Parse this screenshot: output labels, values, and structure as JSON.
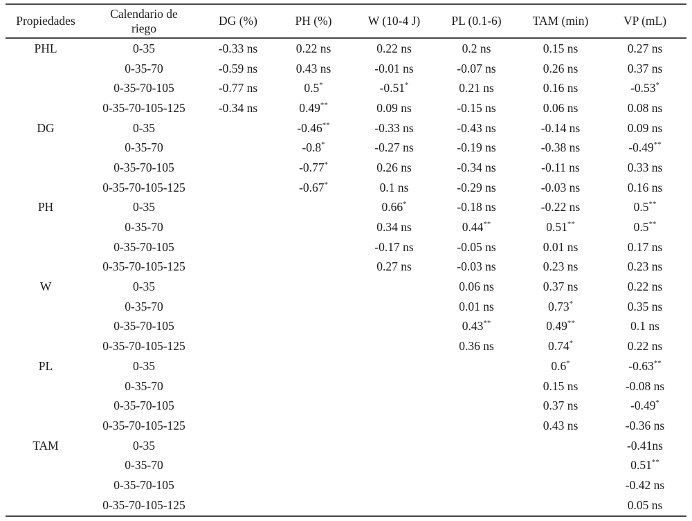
{
  "table": {
    "headers": [
      "Propiedades",
      "Calendario de riego",
      "DG (%)",
      "PH (%)",
      "W (10-4 J)",
      "PL (0.1-6)",
      "TAM (min)",
      "VP (mL)"
    ],
    "significance_legend": {
      "ns": "ns",
      "significant": "*",
      "highly_significant": "**"
    },
    "rows": [
      {
        "property": "PHL",
        "schedule": "0-35",
        "values": [
          "-0.33 ns",
          "0.22 ns",
          "0.22 ns",
          "0.2 ns",
          "0.15 ns",
          "0.27 ns"
        ]
      },
      {
        "property": "",
        "schedule": "0-35-70",
        "values": [
          "-0.59 ns",
          "0.43 ns",
          "-0.01 ns",
          "-0.07 ns",
          "0.26 ns",
          "0.37 ns"
        ]
      },
      {
        "property": "",
        "schedule": "0-35-70-105",
        "values": [
          "-0.77 ns",
          "0.5*",
          "-0.51*",
          "0.21 ns",
          "0.16 ns",
          "-0.53*"
        ]
      },
      {
        "property": "",
        "schedule": "0-35-70-105-125",
        "values": [
          "-0.34 ns",
          "0.49**",
          "0.09 ns",
          "-0.15 ns",
          "0.06 ns",
          "0.08 ns"
        ]
      },
      {
        "property": "DG",
        "schedule": "0-35",
        "values": [
          "",
          "-0.46**",
          "-0.33 ns",
          "-0.43 ns",
          "-0.14 ns",
          "0.09 ns"
        ]
      },
      {
        "property": "",
        "schedule": "0-35-70",
        "values": [
          "",
          "-0.8*",
          "-0.27 ns",
          "-0.19 ns",
          "-0.38 ns",
          "-0.49**"
        ]
      },
      {
        "property": "",
        "schedule": "0-35-70-105",
        "values": [
          "",
          "-0.77*",
          "0.26 ns",
          "-0.34 ns",
          "-0.11 ns",
          "0.33 ns"
        ]
      },
      {
        "property": "",
        "schedule": "0-35-70-105-125",
        "values": [
          "",
          "-0.67*",
          "0.1 ns",
          "-0.29 ns",
          "-0.03 ns",
          "0.16 ns"
        ]
      },
      {
        "property": "PH",
        "schedule": "0-35",
        "values": [
          "",
          "",
          "0.66*",
          "-0.18 ns",
          "-0.22 ns",
          "0.5**"
        ]
      },
      {
        "property": "",
        "schedule": "0-35-70",
        "values": [
          "",
          "",
          "0.34 ns",
          "0.44**",
          "0.51**",
          "0.5**"
        ]
      },
      {
        "property": "",
        "schedule": "0-35-70-105",
        "values": [
          "",
          "",
          "-0.17 ns",
          "-0.05 ns",
          "0.01 ns",
          "0.17 ns"
        ]
      },
      {
        "property": "",
        "schedule": "0-35-70-105-125",
        "values": [
          "",
          "",
          "0.27 ns",
          "-0.03 ns",
          "0.23 ns",
          "0.23 ns"
        ]
      },
      {
        "property": "W",
        "schedule": "0-35",
        "values": [
          "",
          "",
          "",
          "0.06 ns",
          "0.37 ns",
          "0.22 ns"
        ]
      },
      {
        "property": "",
        "schedule": "0-35-70",
        "values": [
          "",
          "",
          "",
          "0.01 ns",
          "0.73*",
          "0.35 ns"
        ]
      },
      {
        "property": "",
        "schedule": "0-35-70-105",
        "values": [
          "",
          "",
          "",
          "0.43**",
          "0.49**",
          "0.1 ns"
        ]
      },
      {
        "property": "",
        "schedule": "0-35-70-105-125",
        "values": [
          "",
          "",
          "",
          "0.36 ns",
          "0.74*",
          "0.22 ns"
        ]
      },
      {
        "property": "PL",
        "schedule": "0-35",
        "values": [
          "",
          "",
          "",
          "",
          "0.6*",
          "-0.63**"
        ]
      },
      {
        "property": "",
        "schedule": "0-35-70",
        "values": [
          "",
          "",
          "",
          "",
          "0.15 ns",
          "-0.08 ns"
        ]
      },
      {
        "property": "",
        "schedule": "0-35-70-105",
        "values": [
          "",
          "",
          "",
          "",
          "0.37 ns",
          "-0.49*"
        ]
      },
      {
        "property": "",
        "schedule": "0-35-70-105-125",
        "values": [
          "",
          "",
          "",
          "",
          "0.43 ns",
          "-0.36 ns"
        ]
      },
      {
        "property": "TAM",
        "schedule": "0-35",
        "values": [
          "",
          "",
          "",
          "",
          "",
          "-0.41ns"
        ]
      },
      {
        "property": "",
        "schedule": "0-35-70",
        "values": [
          "",
          "",
          "",
          "",
          "",
          "0.51**"
        ]
      },
      {
        "property": "",
        "schedule": "0-35-70-105",
        "values": [
          "",
          "",
          "",
          "",
          "",
          "-0.42 ns"
        ]
      },
      {
        "property": "",
        "schedule": "0-35-70-105-125",
        "values": [
          "",
          "",
          "",
          "",
          "",
          "0.05 ns"
        ]
      }
    ]
  }
}
